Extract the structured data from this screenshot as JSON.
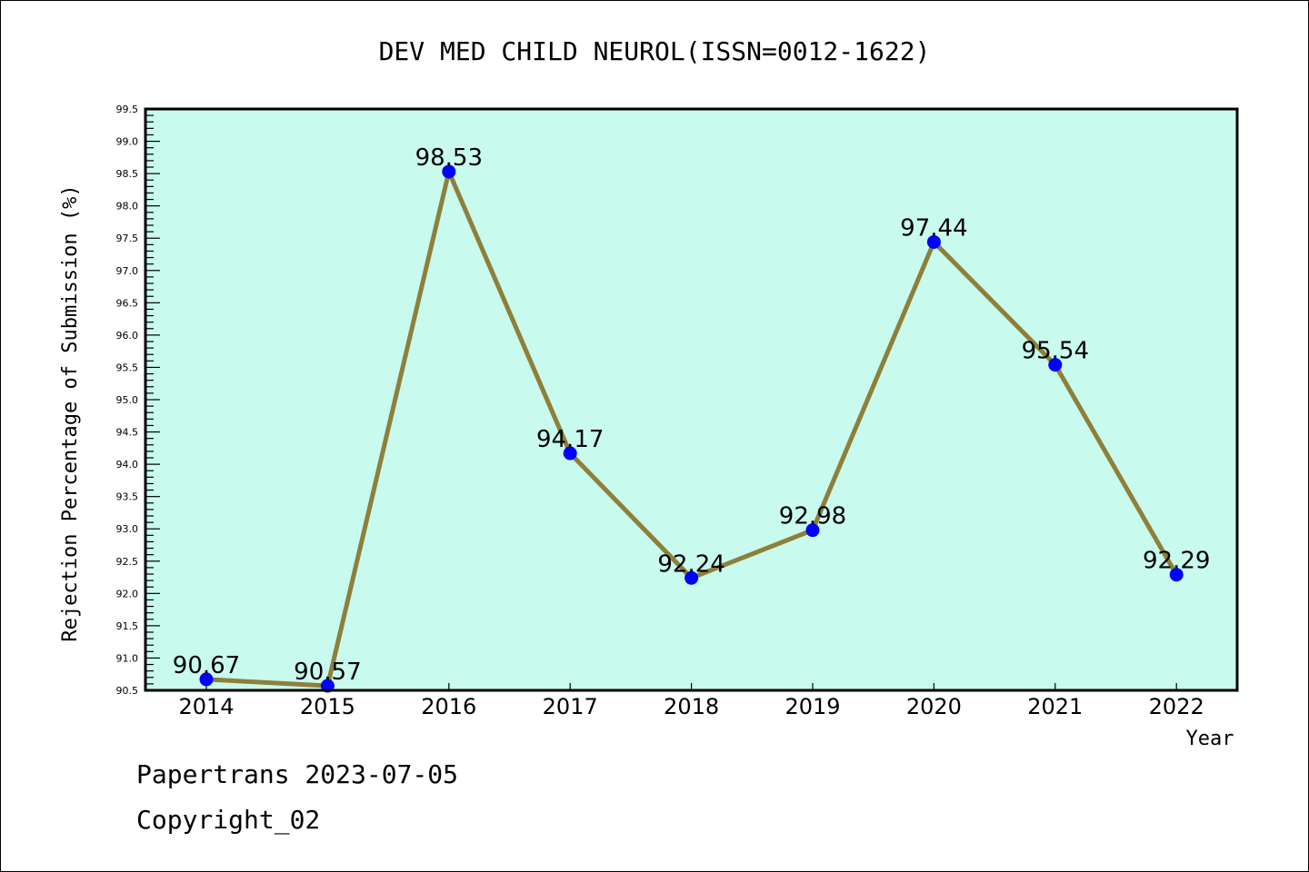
{
  "chart_data": {
    "type": "line",
    "title": "DEV MED CHILD NEUROL(ISSN=0012-1622)",
    "xlabel": "Year",
    "ylabel": "Rejection Percentage of Submission (%)",
    "categories": [
      "2014",
      "2015",
      "2016",
      "2017",
      "2018",
      "2019",
      "2020",
      "2021",
      "2022"
    ],
    "values": [
      90.67,
      90.57,
      98.53,
      94.17,
      92.24,
      92.98,
      97.44,
      95.54,
      92.29
    ],
    "data_labels": [
      "90.67",
      "90.57",
      "98.53",
      "94.17",
      "92.24",
      "92.98",
      "97.44",
      "95.54",
      "92.29"
    ],
    "ylim": [
      90.5,
      99.5
    ],
    "yticks": [
      "90.5",
      "91.0",
      "91.5",
      "92.0",
      "92.5",
      "93.0",
      "93.5",
      "94.0",
      "94.5",
      "95.0",
      "95.5",
      "96.0",
      "96.5",
      "97.0",
      "97.5",
      "98.0",
      "98.5",
      "99.0",
      "99.5"
    ],
    "grid": false,
    "colors": {
      "background": "#C8FAEE",
      "line": "#8E7F3A",
      "marker": "#0000FF"
    }
  },
  "footer": {
    "line1": "Papertrans 2023-07-05",
    "line2": "Copyright_02"
  }
}
